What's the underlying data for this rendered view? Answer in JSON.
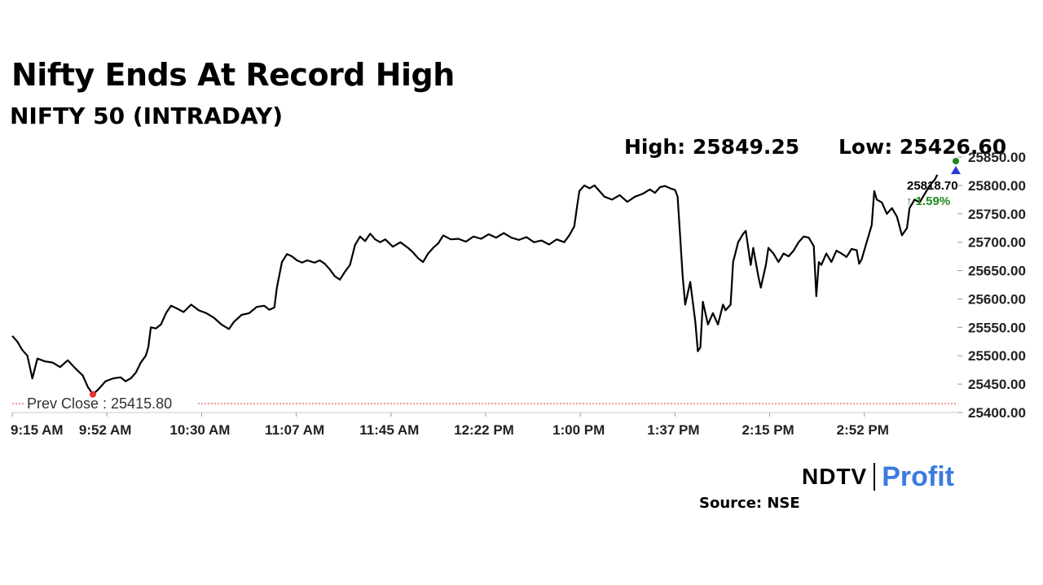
{
  "header": {
    "title": "Nifty Ends At Record High",
    "subtitle": "NIFTY 50 (INTRADAY)",
    "high_label": "High: 25849.25",
    "low_label": "Low: 25426.60"
  },
  "footer": {
    "logo_ndtv": "NDTV",
    "logo_profit": "Profit",
    "source": "Source: NSE"
  },
  "colors": {
    "line": "#000000",
    "prev_close": "#e03030",
    "up": "#1a8a1a",
    "brand_blue": "#3a7be0",
    "brand_pink": "#d94ab0"
  },
  "chart_data": {
    "type": "line",
    "title": "NIFTY 50 (INTRADAY)",
    "x_ticks": [
      "9:15 AM",
      "9:52 AM",
      "10:30 AM",
      "11:07 AM",
      "11:45 AM",
      "12:22 PM",
      "1:00 PM",
      "1:37 PM",
      "2:15 PM",
      "2:52 PM"
    ],
    "x_range_minutes": [
      555,
      930
    ],
    "y_ticks": [
      "25400.00",
      "25450.00",
      "25500.00",
      "25550.00",
      "25600.00",
      "25650.00",
      "25700.00",
      "25750.00",
      "25800.00",
      "25850.00"
    ],
    "ylim": [
      25400,
      25850
    ],
    "prev_close": 25415.8,
    "prev_close_label": "Prev Close : 25415.80",
    "last_value": 25818.7,
    "last_label": "25818.70",
    "change_label": "↑ 1.59%",
    "high": 25849.25,
    "low": 25426.6,
    "series": [
      {
        "values": [
          [
            555,
            25535
          ],
          [
            557,
            25525
          ],
          [
            559,
            25510
          ],
          [
            561,
            25500
          ],
          [
            563,
            25460
          ],
          [
            565,
            25495
          ],
          [
            568,
            25490
          ],
          [
            571,
            25488
          ],
          [
            574,
            25480
          ],
          [
            577,
            25492
          ],
          [
            580,
            25478
          ],
          [
            583,
            25465
          ],
          [
            585,
            25445
          ],
          [
            587,
            25432
          ],
          [
            589,
            25440
          ],
          [
            592,
            25455
          ],
          [
            595,
            25460
          ],
          [
            598,
            25462
          ],
          [
            600,
            25455
          ],
          [
            602,
            25460
          ],
          [
            604,
            25470
          ],
          [
            606,
            25488
          ],
          [
            608,
            25500
          ],
          [
            609,
            25515
          ],
          [
            610,
            25550
          ],
          [
            612,
            25548
          ],
          [
            614,
            25555
          ],
          [
            616,
            25575
          ],
          [
            618,
            25588
          ],
          [
            620,
            25584
          ],
          [
            623,
            25577
          ],
          [
            626,
            25590
          ],
          [
            629,
            25580
          ],
          [
            632,
            25575
          ],
          [
            635,
            25567
          ],
          [
            638,
            25555
          ],
          [
            641,
            25547
          ],
          [
            643,
            25560
          ],
          [
            646,
            25572
          ],
          [
            649,
            25575
          ],
          [
            652,
            25586
          ],
          [
            655,
            25588
          ],
          [
            657,
            25581
          ],
          [
            659,
            25585
          ],
          [
            660,
            25620
          ],
          [
            662,
            25665
          ],
          [
            664,
            25679
          ],
          [
            666,
            25675
          ],
          [
            668,
            25668
          ],
          [
            670,
            25664
          ],
          [
            672,
            25668
          ],
          [
            675,
            25664
          ],
          [
            677,
            25668
          ],
          [
            679,
            25662
          ],
          [
            681,
            25652
          ],
          [
            683,
            25640
          ],
          [
            685,
            25634
          ],
          [
            687,
            25648
          ],
          [
            689,
            25660
          ],
          [
            691,
            25695
          ],
          [
            693,
            25710
          ],
          [
            695,
            25702
          ],
          [
            697,
            25715
          ],
          [
            699,
            25705
          ],
          [
            701,
            25700
          ],
          [
            703,
            25705
          ],
          [
            706,
            25692
          ],
          [
            709,
            25700
          ],
          [
            712,
            25690
          ],
          [
            714,
            25682
          ],
          [
            716,
            25672
          ],
          [
            718,
            25665
          ],
          [
            720,
            25680
          ],
          [
            722,
            25690
          ],
          [
            724,
            25698
          ],
          [
            726,
            25712
          ],
          [
            729,
            25705
          ],
          [
            732,
            25706
          ],
          [
            735,
            25701
          ],
          [
            738,
            25710
          ],
          [
            741,
            25706
          ],
          [
            744,
            25714
          ],
          [
            747,
            25708
          ],
          [
            750,
            25716
          ],
          [
            753,
            25708
          ],
          [
            756,
            25704
          ],
          [
            759,
            25709
          ],
          [
            762,
            25700
          ],
          [
            765,
            25703
          ],
          [
            768,
            25696
          ],
          [
            771,
            25705
          ],
          [
            774,
            25700
          ],
          [
            776,
            25712
          ],
          [
            778,
            25728
          ],
          [
            779,
            25760
          ],
          [
            780,
            25790
          ],
          [
            782,
            25800
          ],
          [
            784,
            25795
          ],
          [
            786,
            25800
          ],
          [
            788,
            25790
          ],
          [
            790,
            25780
          ],
          [
            793,
            25775
          ],
          [
            796,
            25783
          ],
          [
            799,
            25771
          ],
          [
            802,
            25780
          ],
          [
            805,
            25785
          ],
          [
            808,
            25793
          ],
          [
            810,
            25787
          ],
          [
            812,
            25797
          ],
          [
            814,
            25799
          ],
          [
            816,
            25795
          ],
          [
            818,
            25792
          ],
          [
            819,
            25780
          ],
          [
            820,
            25710
          ],
          [
            821,
            25640
          ],
          [
            822,
            25590
          ],
          [
            824,
            25630
          ],
          [
            826,
            25560
          ],
          [
            827,
            25508
          ],
          [
            828,
            25515
          ],
          [
            829,
            25595
          ],
          [
            831,
            25555
          ],
          [
            833,
            25575
          ],
          [
            835,
            25555
          ],
          [
            837,
            25590
          ],
          [
            838,
            25580
          ],
          [
            840,
            25590
          ],
          [
            841,
            25665
          ],
          [
            843,
            25700
          ],
          [
            845,
            25715
          ],
          [
            846,
            25720
          ],
          [
            848,
            25660
          ],
          [
            849,
            25690
          ],
          [
            851,
            25640
          ],
          [
            852,
            25620
          ],
          [
            854,
            25660
          ],
          [
            855,
            25690
          ],
          [
            857,
            25680
          ],
          [
            859,
            25665
          ],
          [
            861,
            25680
          ],
          [
            863,
            25675
          ],
          [
            865,
            25685
          ],
          [
            867,
            25700
          ],
          [
            869,
            25710
          ],
          [
            871,
            25708
          ],
          [
            873,
            25693
          ],
          [
            874,
            25605
          ],
          [
            875,
            25665
          ],
          [
            876,
            25660
          ],
          [
            878,
            25680
          ],
          [
            880,
            25665
          ],
          [
            882,
            25685
          ],
          [
            884,
            25680
          ],
          [
            886,
            25674
          ],
          [
            888,
            25688
          ],
          [
            890,
            25686
          ],
          [
            891,
            25662
          ],
          [
            892,
            25670
          ],
          [
            894,
            25700
          ],
          [
            896,
            25730
          ],
          [
            897,
            25790
          ],
          [
            898,
            25775
          ],
          [
            900,
            25770
          ],
          [
            902,
            25750
          ],
          [
            904,
            25760
          ],
          [
            906,
            25745
          ],
          [
            908,
            25712
          ],
          [
            910,
            25725
          ],
          [
            911,
            25760
          ],
          [
            913,
            25775
          ],
          [
            915,
            25770
          ],
          [
            917,
            25785
          ],
          [
            919,
            25800
          ],
          [
            921,
            25810
          ],
          [
            922,
            25818.7
          ]
        ]
      }
    ]
  }
}
